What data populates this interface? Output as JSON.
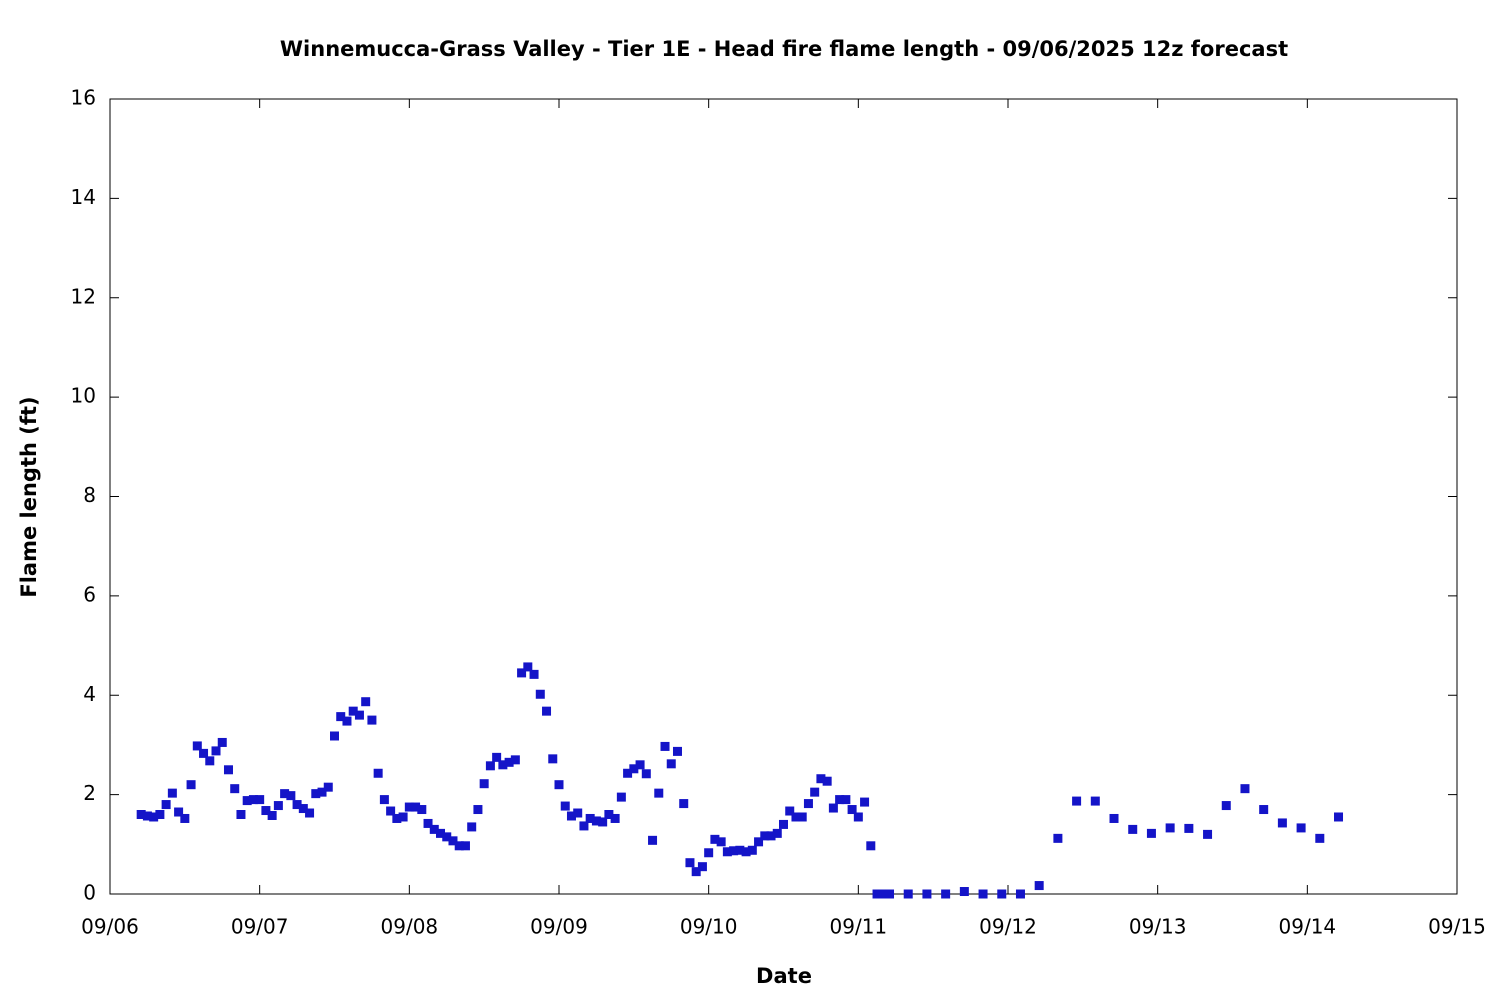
{
  "chart_data": {
    "type": "scatter",
    "title": "Winnemucca-Grass Valley - Tier 1E - Head fire flame length - 09/06/2025 12z forecast",
    "xlabel": "Date",
    "ylabel": "Flame length (ft)",
    "color": "#1414c8",
    "x": [
      5,
      6,
      7,
      8,
      9,
      10,
      11,
      12,
      13,
      14,
      15,
      16,
      17,
      18,
      19,
      20,
      21,
      22,
      23,
      24,
      25,
      26,
      27,
      28,
      29,
      30,
      31,
      32,
      33,
      34,
      35,
      36,
      37,
      38,
      39,
      40,
      41,
      42,
      43,
      44,
      45,
      46,
      47,
      48,
      49,
      50,
      51,
      52,
      53,
      54,
      55,
      56,
      57,
      58,
      59,
      60,
      61,
      62,
      63,
      64,
      65,
      66,
      67,
      68,
      69,
      70,
      71,
      72,
      73,
      74,
      75,
      76,
      77,
      78,
      79,
      80,
      81,
      82,
      83,
      84,
      85,
      86,
      87,
      88,
      89,
      90,
      91,
      92,
      93,
      94,
      95,
      96,
      97,
      98,
      99,
      100,
      101,
      102,
      103,
      104,
      105,
      106,
      107,
      108,
      109,
      110,
      111,
      112,
      113,
      114,
      115,
      116,
      117,
      118,
      119,
      120,
      121,
      122,
      123,
      124,
      125,
      128,
      131,
      134,
      137,
      140,
      143,
      146,
      149,
      152,
      155,
      158,
      161,
      164,
      167,
      170,
      173,
      176,
      179,
      182,
      185,
      188,
      191,
      194,
      197
    ],
    "values": [
      1.6,
      1.57,
      1.55,
      1.6,
      1.8,
      2.03,
      1.65,
      1.52,
      2.2,
      2.98,
      2.83,
      2.68,
      2.88,
      3.05,
      2.5,
      2.12,
      1.6,
      1.88,
      1.9,
      1.9,
      1.68,
      1.58,
      1.78,
      2.02,
      1.98,
      1.8,
      1.72,
      1.63,
      2.02,
      2.05,
      2.15,
      3.18,
      3.57,
      3.48,
      3.68,
      3.6,
      3.87,
      3.5,
      2.43,
      1.9,
      1.67,
      1.52,
      1.55,
      1.75,
      1.75,
      1.7,
      1.42,
      1.3,
      1.22,
      1.15,
      1.07,
      0.97,
      0.97,
      1.35,
      1.7,
      2.22,
      2.58,
      2.75,
      2.6,
      2.65,
      2.7,
      4.45,
      4.57,
      4.42,
      4.02,
      3.68,
      2.72,
      2.2,
      1.77,
      1.57,
      1.63,
      1.37,
      1.52,
      1.47,
      1.45,
      1.6,
      1.52,
      1.95,
      2.43,
      2.52,
      2.6,
      2.42,
      1.08,
      2.03,
      2.97,
      2.62,
      2.87,
      1.82,
      0.63,
      0.45,
      0.55,
      0.83,
      1.1,
      1.05,
      0.85,
      0.87,
      0.88,
      0.85,
      0.88,
      1.05,
      1.17,
      1.17,
      1.22,
      1.4,
      1.67,
      1.55,
      1.55,
      1.82,
      2.05,
      2.32,
      2.27,
      1.73,
      1.9,
      1.9,
      1.7,
      1.55,
      1.85,
      0.97,
      0,
      0,
      0,
      0,
      0,
      0,
      0.05,
      0,
      0,
      0,
      0.17,
      1.12,
      1.87,
      1.87,
      1.52,
      1.3,
      1.22,
      1.33,
      1.32,
      1.2,
      1.78,
      2.12,
      1.7,
      1.43,
      1.33,
      1.12,
      1.55
    ],
    "xlim": [
      0,
      216
    ],
    "xticks": [
      {
        "value": 0,
        "label": "09/06"
      },
      {
        "value": 24,
        "label": "09/07"
      },
      {
        "value": 48,
        "label": "09/08"
      },
      {
        "value": 72,
        "label": "09/09"
      },
      {
        "value": 96,
        "label": "09/10"
      },
      {
        "value": 120,
        "label": "09/11"
      },
      {
        "value": 144,
        "label": "09/12"
      },
      {
        "value": 168,
        "label": "09/13"
      },
      {
        "value": 192,
        "label": "09/14"
      },
      {
        "value": 216,
        "label": "09/15"
      }
    ],
    "ylim": [
      0,
      16
    ],
    "yticks": [
      0,
      2,
      4,
      6,
      8,
      10,
      12,
      14,
      16
    ]
  }
}
